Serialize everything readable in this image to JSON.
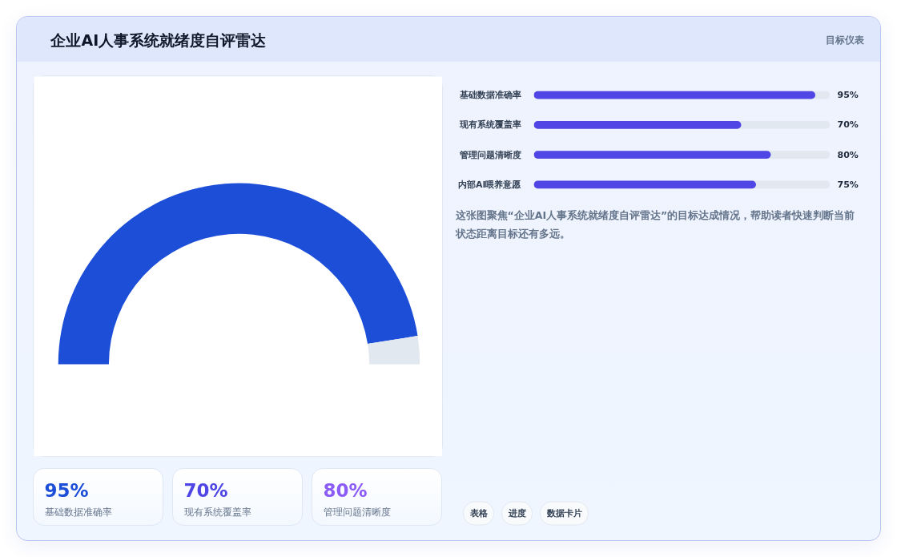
{
  "chart_data": [
    {
      "type": "donut",
      "title": "企业AI人事系统就绪度自评雷达",
      "categories": [
        null,
        null
      ],
      "values": [
        95,
        5
      ],
      "colors": [
        "#1d4ed8",
        "#e2e8f0"
      ]
    },
    {
      "type": "bar",
      "subtitle": "目标仪表",
      "orientation": "horizontal",
      "categories": [
        "基础数据准确率",
        "现有系统覆盖率",
        "管理问题清晰度",
        "内部AI喂养意愿"
      ],
      "values": [
        95,
        70,
        80,
        75
      ],
      "value_labels": [
        "95%",
        "70%",
        "80%",
        "75%"
      ],
      "color": "#4f46e5",
      "xlim": [
        0,
        100
      ],
      "tick_labels": "y",
      "annotations": [
        "这张图聚焦“企业AI人事系统就绪度自评雷达”的目标达成情况，帮助读者快速判断当前状态距离目标还有多远。"
      ]
    },
    {
      "type": "other",
      "categories": [
        "基础数据准确率",
        "现有系统覆盖率",
        "管理问题清晰度"
      ],
      "values": [
        95,
        70,
        80
      ],
      "value_labels": [
        "95%",
        "70%",
        "80%"
      ]
    },
    {
      "type": "other",
      "annotations": [
        "表格",
        "进度",
        "数据卡片"
      ]
    }
  ]
}
